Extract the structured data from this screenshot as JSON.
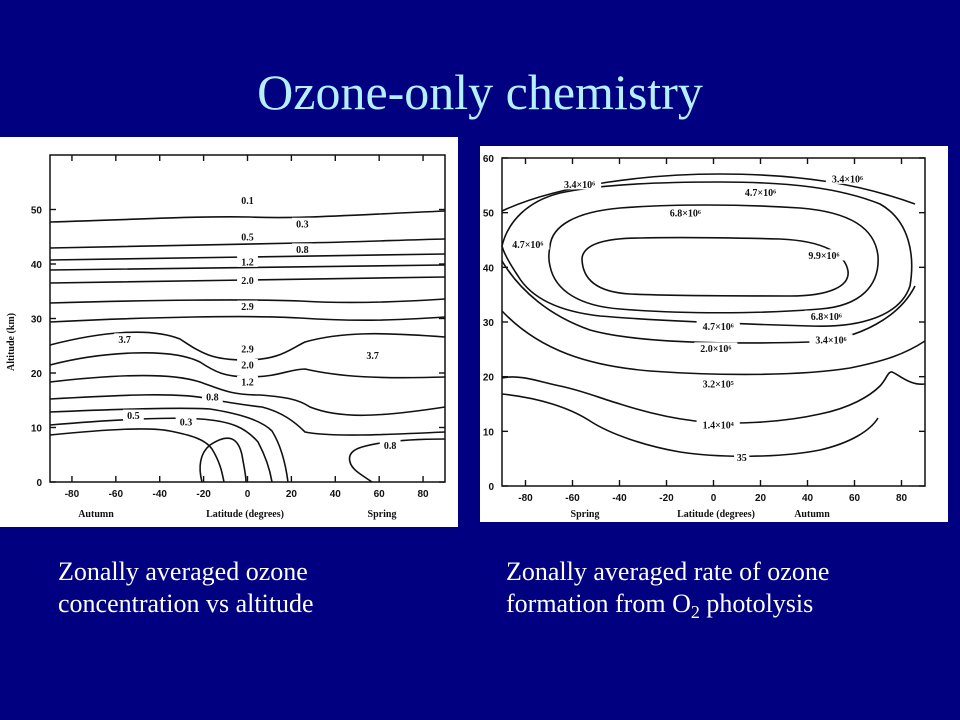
{
  "slide": {
    "title": "Ozone-only chemistry",
    "caption_left_line1": "Zonally averaged ozone",
    "caption_left_line2": "concentration vs altitude",
    "caption_right_line1": "Zonally averaged rate of ozone",
    "caption_right_line2_pre": "formation from O",
    "caption_right_line2_sub": "2",
    "caption_right_line2_post": " photolysis"
  },
  "colors": {
    "background": "#000080",
    "title": "#b4f0ff",
    "caption": "#ffffff"
  },
  "chart_data": [
    {
      "type": "contour",
      "xlabel": "Latitude (degrees)",
      "ylabel": "Altitude (km)",
      "xlim": [
        -90,
        90
      ],
      "ylim": [
        0,
        60
      ],
      "xticks": [
        -80,
        -60,
        -40,
        -20,
        0,
        20,
        40,
        60,
        80
      ],
      "yticks": [
        0,
        10,
        20,
        30,
        40,
        50
      ],
      "season_left": "Autumn",
      "season_right": "Spring",
      "contour_labels": [
        {
          "text": "0.1",
          "lat": 0,
          "alt": 51.5
        },
        {
          "text": "0.3",
          "lat": 25,
          "alt": 47.2
        },
        {
          "text": "0.5",
          "lat": 0,
          "alt": 44.8
        },
        {
          "text": "0.8",
          "lat": 25,
          "alt": 42.5
        },
        {
          "text": "1.2",
          "lat": 0,
          "alt": 40.2
        },
        {
          "text": "2.0",
          "lat": 0,
          "alt": 36.8
        },
        {
          "text": "2.9",
          "lat": 0,
          "alt": 32.0
        },
        {
          "text": "3.7",
          "lat": -56,
          "alt": 26.0
        },
        {
          "text": "2.9",
          "lat": 0,
          "alt": 24.2
        },
        {
          "text": "3.7",
          "lat": 57,
          "alt": 23.0
        },
        {
          "text": "2.0",
          "lat": 0,
          "alt": 21.3
        },
        {
          "text": "1.2",
          "lat": 0,
          "alt": 18.2
        },
        {
          "text": "0.8",
          "lat": -16,
          "alt": 15.4
        },
        {
          "text": "0.5",
          "lat": -52,
          "alt": 12.0
        },
        {
          "text": "0.3",
          "lat": -28,
          "alt": 10.8
        },
        {
          "text": "0.8",
          "lat": 65,
          "alt": 6.5
        }
      ]
    },
    {
      "type": "contour",
      "xlabel": "Latitude (degrees)",
      "xlim": [
        -90,
        90
      ],
      "ylim": [
        0,
        60
      ],
      "xticks": [
        -80,
        -60,
        -40,
        -20,
        0,
        20,
        40,
        60,
        80
      ],
      "yticks": [
        0,
        10,
        20,
        30,
        40,
        50,
        60
      ],
      "season_left": "Spring",
      "season_right": "Autumn",
      "contour_labels": [
        {
          "text": "3.4×10⁶",
          "lat": -57,
          "alt": 55.0
        },
        {
          "text": "3.4×10⁶",
          "lat": 57,
          "alt": 56.0
        },
        {
          "text": "4.7×10⁶",
          "lat": 20,
          "alt": 53.5
        },
        {
          "text": "6.8×10⁶",
          "lat": -12,
          "alt": 49.8
        },
        {
          "text": "4.7×10⁶",
          "lat": -79,
          "alt": 44.0
        },
        {
          "text": "9.9×10⁶",
          "lat": 47,
          "alt": 42.0
        },
        {
          "text": "6.8×10⁶",
          "lat": 48,
          "alt": 30.8
        },
        {
          "text": "4.7×10⁶",
          "lat": 2,
          "alt": 29.0
        },
        {
          "text": "3.4×10⁶",
          "lat": 50,
          "alt": 26.5
        },
        {
          "text": "2.0×10⁶",
          "lat": 1,
          "alt": 25.0
        },
        {
          "text": "3.2×10⁵",
          "lat": 2,
          "alt": 18.5
        },
        {
          "text": "1.4×10⁴",
          "lat": 2,
          "alt": 11.0
        },
        {
          "text": "35",
          "lat": 12,
          "alt": 5.0
        }
      ]
    }
  ]
}
